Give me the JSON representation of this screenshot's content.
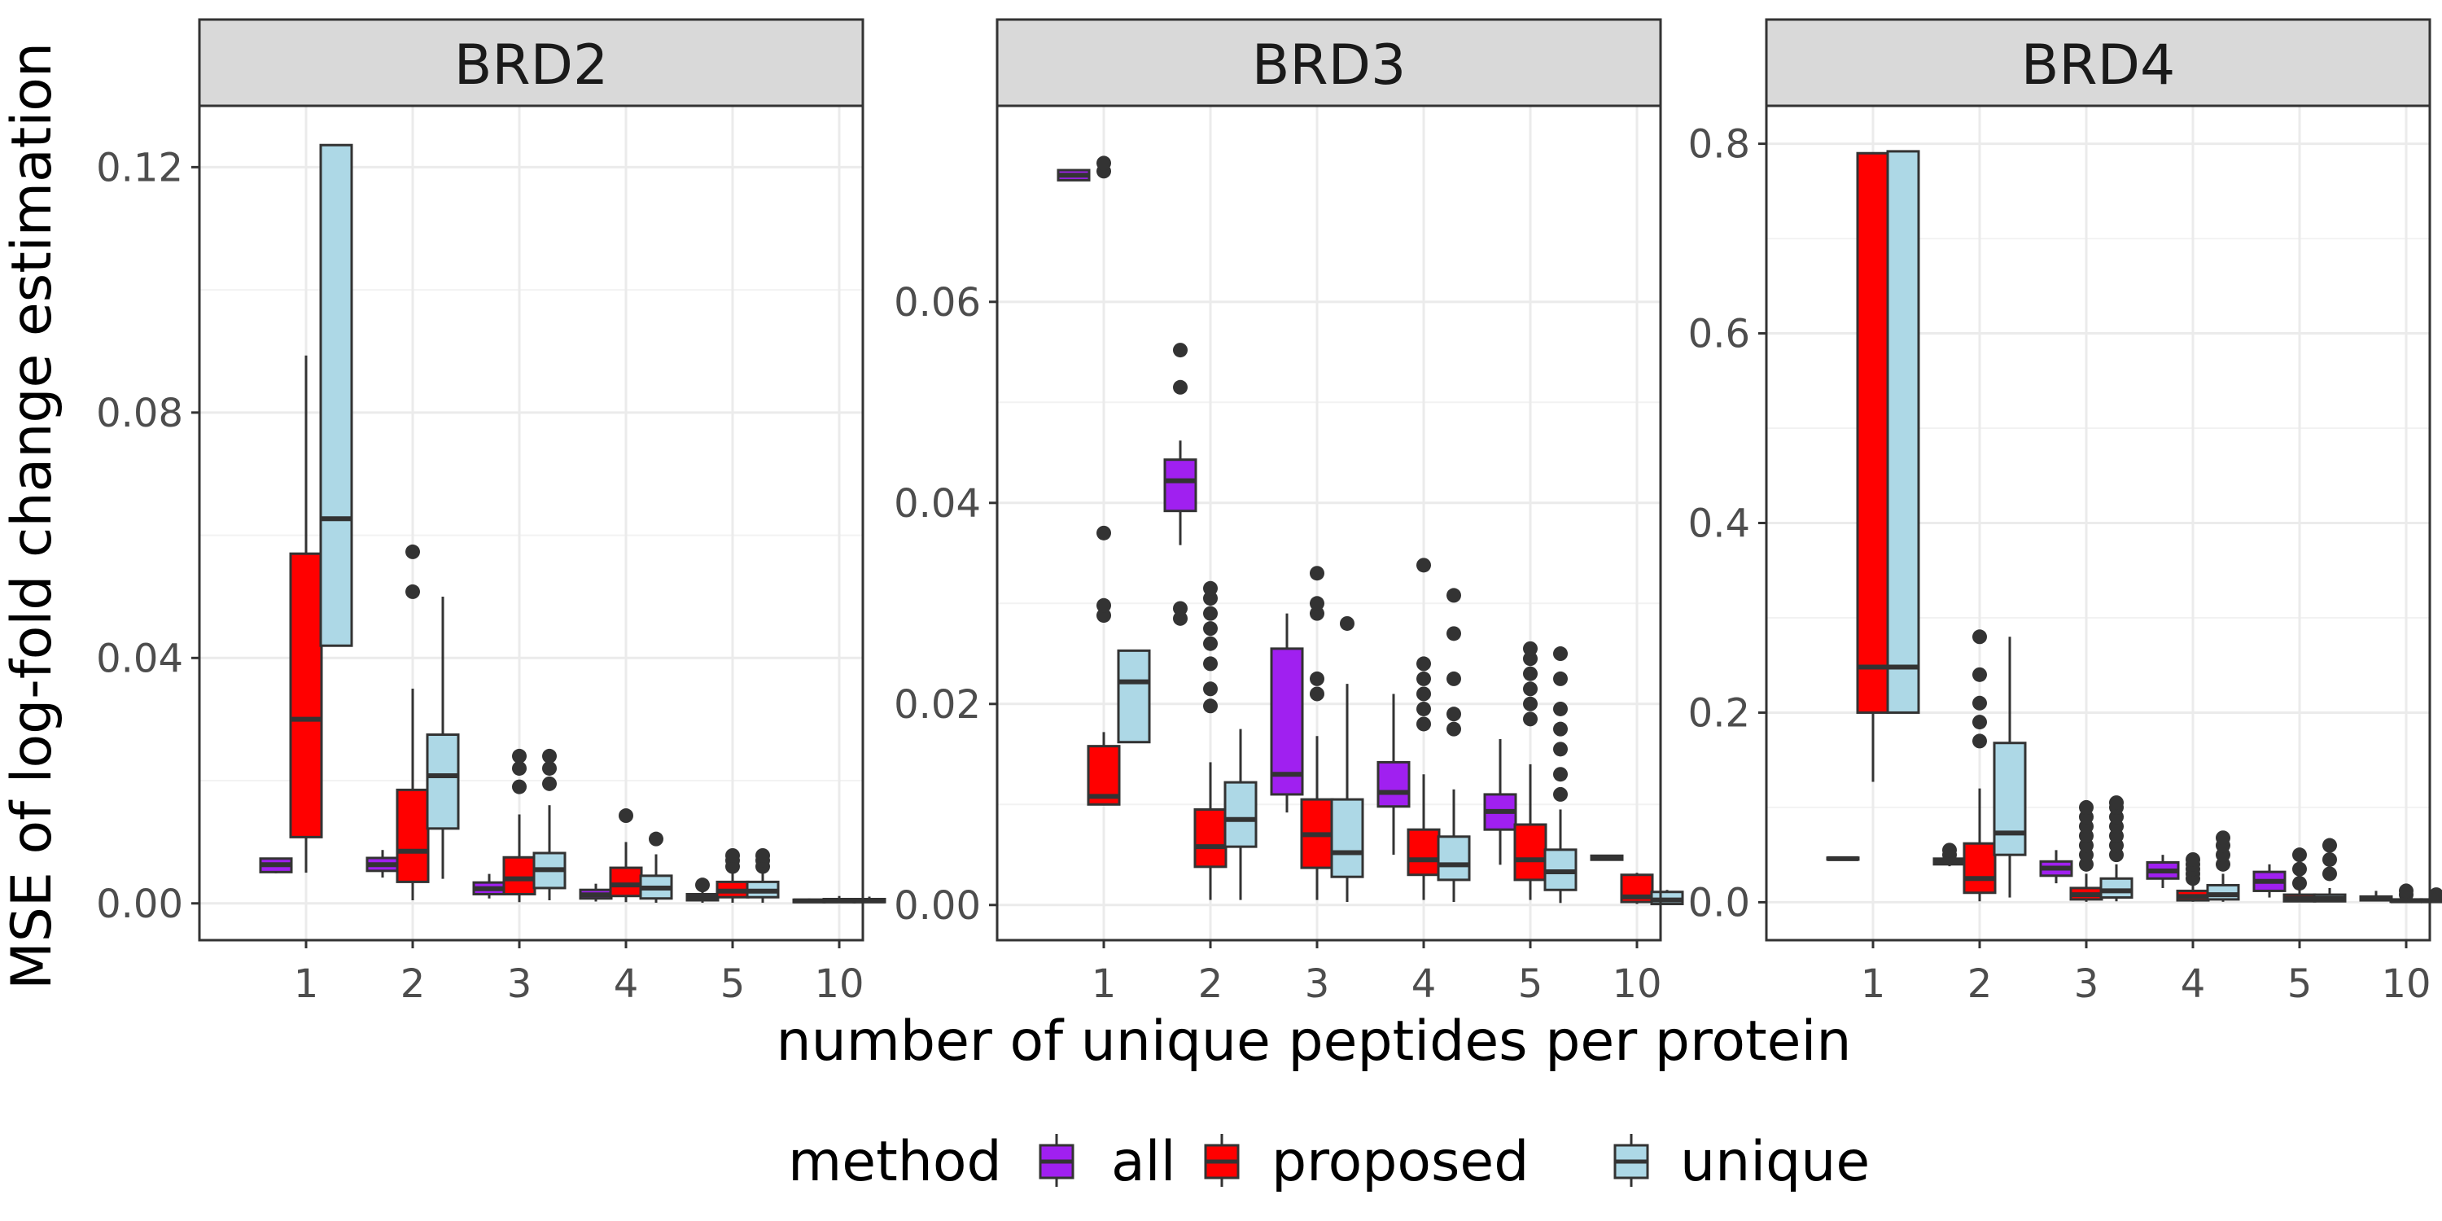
{
  "chart_data": {
    "type": "boxplot",
    "xlabel": "number of unique peptides per protein",
    "ylabel": "MSE of log-fold change estimation",
    "categories": [
      "1",
      "2",
      "3",
      "4",
      "5",
      "10"
    ],
    "legend": {
      "title": "method",
      "position": "bottom",
      "entries": [
        {
          "name": "all",
          "color": "#A020F0"
        },
        {
          "name": "proposed",
          "color": "#FF0000"
        },
        {
          "name": "unique",
          "color": "#ADD8E6"
        }
      ]
    },
    "grid": true,
    "panels": [
      {
        "title": "BRD2",
        "ylim": [
          -0.006,
          0.13
        ],
        "yticks": [
          0.0,
          0.04,
          0.08,
          0.12
        ],
        "ytick_labels": [
          "0.00",
          "0.04",
          "0.08",
          "0.12"
        ],
        "series": [
          {
            "name": "all",
            "boxes": [
              {
                "x": "1",
                "q1": 0.0051,
                "median": 0.0063,
                "q3": 0.0073,
                "low": 0.0049,
                "high": 0.0074,
                "outliers": []
              },
              {
                "x": "2",
                "q1": 0.0053,
                "median": 0.0063,
                "q3": 0.0074,
                "low": 0.0042,
                "high": 0.0087,
                "outliers": []
              },
              {
                "x": "3",
                "q1": 0.0015,
                "median": 0.0024,
                "q3": 0.0034,
                "low": 0.0008,
                "high": 0.0048,
                "outliers": []
              },
              {
                "x": "4",
                "q1": 0.0008,
                "median": 0.0014,
                "q3": 0.0022,
                "low": 0.0003,
                "high": 0.0032,
                "outliers": []
              },
              {
                "x": "5",
                "q1": 0.0005,
                "median": 0.0009,
                "q3": 0.0015,
                "low": 0.0001,
                "high": 0.0026,
                "outliers": [
                  0.003
                ]
              },
              {
                "x": "10",
                "q1": 0.0002,
                "median": 0.0004,
                "q3": 0.0006,
                "low": 0.0001,
                "high": 0.0008,
                "outliers": []
              }
            ]
          },
          {
            "name": "proposed",
            "boxes": [
              {
                "x": "1",
                "q1": 0.0108,
                "median": 0.03,
                "q3": 0.057,
                "low": 0.005,
                "high": 0.0893,
                "outliers": []
              },
              {
                "x": "2",
                "q1": 0.0035,
                "median": 0.0085,
                "q3": 0.0185,
                "low": 0.0005,
                "high": 0.035,
                "outliers": [
                  0.0508,
                  0.0573
                ]
              },
              {
                "x": "3",
                "q1": 0.0015,
                "median": 0.004,
                "q3": 0.0075,
                "low": 0.0002,
                "high": 0.0145,
                "outliers": [
                  0.019,
                  0.022,
                  0.024
                ]
              },
              {
                "x": "4",
                "q1": 0.0012,
                "median": 0.003,
                "q3": 0.0058,
                "low": 0.0002,
                "high": 0.01,
                "outliers": [
                  0.0143
                ]
              },
              {
                "x": "5",
                "q1": 0.001,
                "median": 0.002,
                "q3": 0.0035,
                "low": 0.0001,
                "high": 0.005,
                "outliers": [
                  0.006,
                  0.007,
                  0.0078
                ]
              },
              {
                "x": "10",
                "q1": 0.0002,
                "median": 0.0004,
                "q3": 0.0007,
                "low": 0.0001,
                "high": 0.0012,
                "outliers": []
              }
            ]
          },
          {
            "name": "unique",
            "boxes": [
              {
                "x": "1",
                "q1": 0.042,
                "median": 0.0627,
                "q3": 0.1236,
                "low": 0.042,
                "high": 0.1236,
                "outliers": []
              },
              {
                "x": "2",
                "q1": 0.0122,
                "median": 0.0208,
                "q3": 0.0275,
                "low": 0.004,
                "high": 0.05,
                "outliers": []
              },
              {
                "x": "3",
                "q1": 0.0025,
                "median": 0.0055,
                "q3": 0.0082,
                "low": 0.0005,
                "high": 0.016,
                "outliers": [
                  0.0195,
                  0.022,
                  0.024
                ]
              },
              {
                "x": "4",
                "q1": 0.0008,
                "median": 0.0025,
                "q3": 0.0045,
                "low": 0.0001,
                "high": 0.008,
                "outliers": [
                  0.0105
                ]
              },
              {
                "x": "5",
                "q1": 0.001,
                "median": 0.002,
                "q3": 0.0035,
                "low": 0.0001,
                "high": 0.005,
                "outliers": [
                  0.006,
                  0.007,
                  0.0078
                ]
              },
              {
                "x": "10",
                "q1": 0.0002,
                "median": 0.0004,
                "q3": 0.0007,
                "low": 0.0001,
                "high": 0.0011,
                "outliers": []
              }
            ]
          }
        ]
      },
      {
        "title": "BRD3",
        "ylim": [
          -0.0035,
          0.0795
        ],
        "yticks": [
          0.0,
          0.02,
          0.04,
          0.06
        ],
        "ytick_labels": [
          "0.00",
          "0.02",
          "0.04",
          "0.06"
        ],
        "series": [
          {
            "name": "all",
            "boxes": [
              {
                "x": "1",
                "q1": 0.0721,
                "median": 0.0726,
                "q3": 0.0731,
                "low": 0.0721,
                "high": 0.0731,
                "outliers": []
              },
              {
                "x": "2",
                "q1": 0.0392,
                "median": 0.0422,
                "q3": 0.0443,
                "low": 0.0358,
                "high": 0.0462,
                "outliers": [
                  0.0285,
                  0.0295,
                  0.0515,
                  0.0552
                ]
              },
              {
                "x": "3",
                "q1": 0.011,
                "median": 0.013,
                "q3": 0.0255,
                "low": 0.0092,
                "high": 0.029,
                "outliers": []
              },
              {
                "x": "4",
                "q1": 0.0098,
                "median": 0.0112,
                "q3": 0.0142,
                "low": 0.005,
                "high": 0.021,
                "outliers": []
              },
              {
                "x": "5",
                "q1": 0.0075,
                "median": 0.0093,
                "q3": 0.011,
                "low": 0.004,
                "high": 0.0165,
                "outliers": []
              },
              {
                "x": "10",
                "q1": 0.0045,
                "median": 0.0047,
                "q3": 0.0049,
                "low": 0.0045,
                "high": 0.0049,
                "outliers": []
              }
            ]
          },
          {
            "name": "proposed",
            "boxes": [
              {
                "x": "1",
                "q1": 0.01,
                "median": 0.0108,
                "q3": 0.0158,
                "low": 0.01,
                "high": 0.0172,
                "outliers": [
                  0.0288,
                  0.0298,
                  0.037,
                  0.073,
                  0.0738
                ]
              },
              {
                "x": "2",
                "q1": 0.0038,
                "median": 0.0058,
                "q3": 0.0095,
                "low": 0.0005,
                "high": 0.0142,
                "outliers": [
                  0.0198,
                  0.0215,
                  0.024,
                  0.026,
                  0.0275,
                  0.029,
                  0.0305,
                  0.0315
                ]
              },
              {
                "x": "3",
                "q1": 0.0037,
                "median": 0.007,
                "q3": 0.0105,
                "low": 0.0005,
                "high": 0.0168,
                "outliers": [
                  0.021,
                  0.0225,
                  0.029,
                  0.03,
                  0.033
                ]
              },
              {
                "x": "4",
                "q1": 0.003,
                "median": 0.0045,
                "q3": 0.0075,
                "low": 0.0005,
                "high": 0.013,
                "outliers": [
                  0.018,
                  0.0195,
                  0.021,
                  0.0225,
                  0.024,
                  0.0338
                ]
              },
              {
                "x": "5",
                "q1": 0.0025,
                "median": 0.0045,
                "q3": 0.008,
                "low": 0.0005,
                "high": 0.014,
                "outliers": [
                  0.0185,
                  0.02,
                  0.0215,
                  0.023,
                  0.0245,
                  0.0255
                ]
              },
              {
                "x": "10",
                "q1": 0.0003,
                "median": 0.0008,
                "q3": 0.003,
                "low": 0.0001,
                "high": 0.0032,
                "outliers": []
              }
            ]
          },
          {
            "name": "unique",
            "boxes": [
              {
                "x": "1",
                "q1": 0.0162,
                "median": 0.0222,
                "q3": 0.0253,
                "low": 0.0162,
                "high": 0.0253,
                "outliers": []
              },
              {
                "x": "2",
                "q1": 0.0058,
                "median": 0.0085,
                "q3": 0.0122,
                "low": 0.0005,
                "high": 0.0175,
                "outliers": []
              },
              {
                "x": "3",
                "q1": 0.0028,
                "median": 0.0052,
                "q3": 0.0105,
                "low": 0.0003,
                "high": 0.022,
                "outliers": [
                  0.028
                ]
              },
              {
                "x": "4",
                "q1": 0.0025,
                "median": 0.004,
                "q3": 0.0068,
                "low": 0.0003,
                "high": 0.0115,
                "outliers": [
                  0.0175,
                  0.019,
                  0.0225,
                  0.027,
                  0.0308
                ]
              },
              {
                "x": "5",
                "q1": 0.0015,
                "median": 0.0033,
                "q3": 0.0055,
                "low": 0.0002,
                "high": 0.0095,
                "outliers": [
                  0.011,
                  0.013,
                  0.0155,
                  0.0175,
                  0.0195,
                  0.0225,
                  0.025
                ]
              },
              {
                "x": "10",
                "q1": 0.0001,
                "median": 0.0005,
                "q3": 0.0013,
                "low": 0.0001,
                "high": 0.0015,
                "outliers": []
              }
            ]
          }
        ]
      },
      {
        "title": "BRD4",
        "ylim": [
          -0.04,
          0.84
        ],
        "yticks": [
          0.0,
          0.2,
          0.4,
          0.6,
          0.8
        ],
        "ytick_labels": [
          "0.0",
          "0.2",
          "0.4",
          "0.6",
          "0.8"
        ],
        "series": [
          {
            "name": "all",
            "boxes": [
              {
                "x": "1",
                "q1": 0.045,
                "median": 0.046,
                "q3": 0.047,
                "low": 0.045,
                "high": 0.047,
                "outliers": []
              },
              {
                "x": "2",
                "q1": 0.04,
                "median": 0.043,
                "q3": 0.046,
                "low": 0.038,
                "high": 0.048,
                "outliers": [
                  0.05,
                  0.055
                ]
              },
              {
                "x": "3",
                "q1": 0.028,
                "median": 0.036,
                "q3": 0.043,
                "low": 0.02,
                "high": 0.055,
                "outliers": []
              },
              {
                "x": "4",
                "q1": 0.025,
                "median": 0.033,
                "q3": 0.042,
                "low": 0.015,
                "high": 0.05,
                "outliers": []
              },
              {
                "x": "5",
                "q1": 0.012,
                "median": 0.022,
                "q3": 0.032,
                "low": 0.005,
                "high": 0.04,
                "outliers": []
              },
              {
                "x": "10",
                "q1": 0.002,
                "median": 0.004,
                "q3": 0.006,
                "low": 0.001,
                "high": 0.012,
                "outliers": []
              }
            ]
          },
          {
            "name": "proposed",
            "boxes": [
              {
                "x": "1",
                "q1": 0.2,
                "median": 0.248,
                "q3": 0.79,
                "low": 0.127,
                "high": 0.79,
                "outliers": []
              },
              {
                "x": "2",
                "q1": 0.01,
                "median": 0.025,
                "q3": 0.062,
                "low": 0.001,
                "high": 0.12,
                "outliers": [
                  0.17,
                  0.19,
                  0.21,
                  0.24,
                  0.28
                ]
              },
              {
                "x": "3",
                "q1": 0.003,
                "median": 0.008,
                "q3": 0.015,
                "low": 0.0005,
                "high": 0.03,
                "outliers": [
                  0.04,
                  0.05,
                  0.06,
                  0.07,
                  0.08,
                  0.09,
                  0.1
                ]
              },
              {
                "x": "4",
                "q1": 0.002,
                "median": 0.006,
                "q3": 0.012,
                "low": 0.0005,
                "high": 0.02,
                "outliers": [
                  0.025,
                  0.03,
                  0.035,
                  0.04,
                  0.045
                ]
              },
              {
                "x": "5",
                "q1": 0.001,
                "median": 0.004,
                "q3": 0.008,
                "low": 0.0003,
                "high": 0.015,
                "outliers": [
                  0.02,
                  0.035,
                  0.05
                ]
              },
              {
                "x": "10",
                "q1": 0.0005,
                "median": 0.0015,
                "q3": 0.003,
                "low": 0.0001,
                "high": 0.006,
                "outliers": [
                  0.008,
                  0.012
                ]
              }
            ]
          },
          {
            "name": "unique",
            "boxes": [
              {
                "x": "1",
                "q1": 0.2,
                "median": 0.248,
                "q3": 0.792,
                "low": 0.2,
                "high": 0.792,
                "outliers": []
              },
              {
                "x": "2",
                "q1": 0.05,
                "median": 0.073,
                "q3": 0.168,
                "low": 0.005,
                "high": 0.28,
                "outliers": []
              },
              {
                "x": "3",
                "q1": 0.005,
                "median": 0.012,
                "q3": 0.025,
                "low": 0.001,
                "high": 0.04,
                "outliers": [
                  0.05,
                  0.06,
                  0.07,
                  0.08,
                  0.09,
                  0.1,
                  0.105
                ]
              },
              {
                "x": "4",
                "q1": 0.003,
                "median": 0.008,
                "q3": 0.018,
                "low": 0.0005,
                "high": 0.03,
                "outliers": [
                  0.04,
                  0.05,
                  0.06,
                  0.068
                ]
              },
              {
                "x": "5",
                "q1": 0.001,
                "median": 0.004,
                "q3": 0.008,
                "low": 0.0003,
                "high": 0.015,
                "outliers": [
                  0.03,
                  0.045,
                  0.06
                ]
              },
              {
                "x": "10",
                "q1": 0.0005,
                "median": 0.0015,
                "q3": 0.003,
                "low": 0.0001,
                "high": 0.006,
                "outliers": [
                  0.008
                ]
              }
            ]
          }
        ]
      }
    ]
  }
}
